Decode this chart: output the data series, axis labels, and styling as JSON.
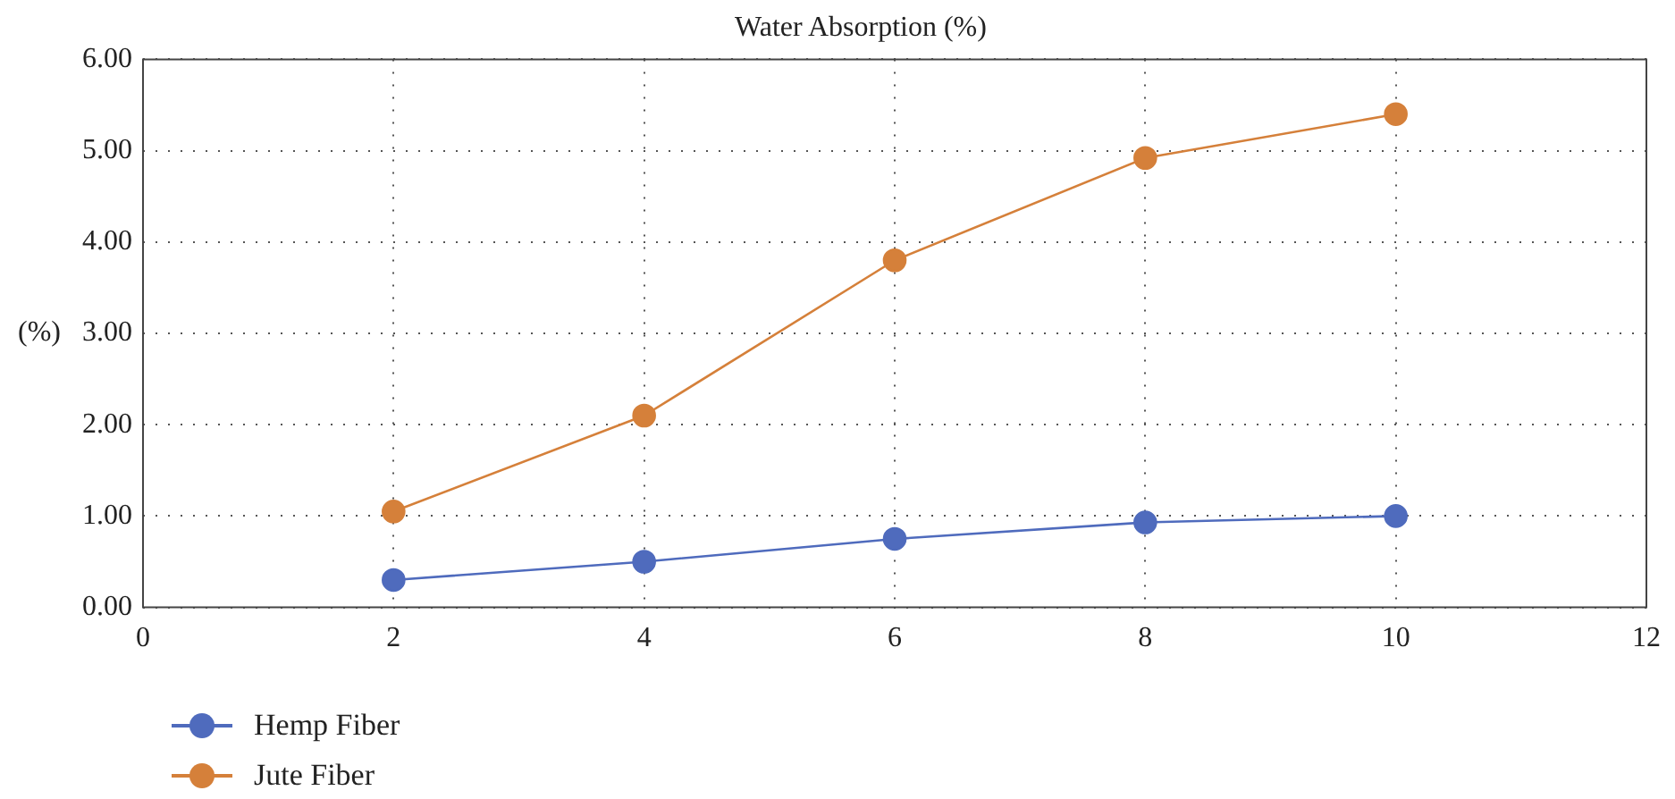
{
  "chart_data": {
    "type": "line",
    "title": "Water Absorption (%)",
    "ylabel": "(%)",
    "x": [
      2,
      4,
      6,
      8,
      10
    ],
    "series": [
      {
        "name": "Hemp Fiber",
        "color": "#4f6bbd",
        "values": [
          0.3,
          0.5,
          0.75,
          0.93,
          1.0
        ]
      },
      {
        "name": "Jute Fiber",
        "color": "#d5803a",
        "values": [
          1.05,
          2.1,
          3.8,
          4.92,
          5.4
        ]
      }
    ],
    "xlim": [
      0,
      12
    ],
    "xticks": [
      0,
      2,
      4,
      6,
      8,
      10,
      12
    ],
    "ylim": [
      0,
      6
    ],
    "yticks": [
      {
        "value": 0,
        "label": "0.00"
      },
      {
        "value": 1,
        "label": "1.00"
      },
      {
        "value": 2,
        "label": "2.00"
      },
      {
        "value": 3,
        "label": "3.00"
      },
      {
        "value": 4,
        "label": "4.00"
      },
      {
        "value": 5,
        "label": "5.00"
      },
      {
        "value": 6,
        "label": "6.00"
      }
    ],
    "grid": true,
    "legend": "bottom left",
    "marker": "circle",
    "line_style": "solid"
  }
}
